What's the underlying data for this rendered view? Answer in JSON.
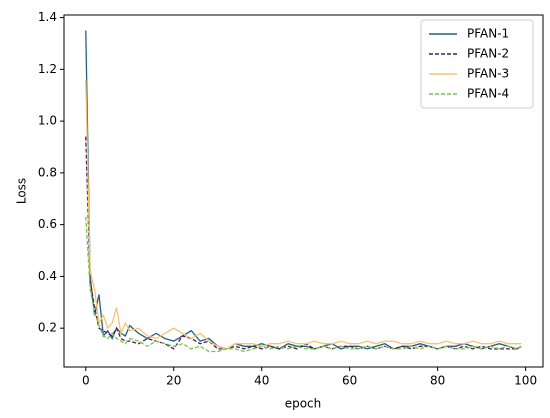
{
  "chart_data": {
    "type": "line",
    "xlabel": "epoch",
    "ylabel": "Loss",
    "x": [
      0,
      1,
      2,
      3,
      4,
      5,
      6,
      7,
      8,
      9,
      10,
      12,
      14,
      16,
      18,
      20,
      22,
      24,
      26,
      28,
      30,
      32,
      34,
      36,
      38,
      40,
      42,
      44,
      46,
      48,
      50,
      52,
      54,
      56,
      58,
      60,
      62,
      64,
      66,
      68,
      70,
      72,
      74,
      76,
      78,
      80,
      82,
      84,
      86,
      88,
      90,
      92,
      94,
      96,
      98,
      99
    ],
    "series": [
      {
        "name": "PFAN-1",
        "color": "#21617f",
        "linestyle": "solid",
        "values": [
          1.35,
          0.4,
          0.25,
          0.33,
          0.17,
          0.19,
          0.16,
          0.2,
          0.18,
          0.17,
          0.21,
          0.18,
          0.16,
          0.18,
          0.16,
          0.15,
          0.17,
          0.19,
          0.15,
          0.16,
          0.13,
          0.12,
          0.14,
          0.13,
          0.13,
          0.14,
          0.13,
          0.12,
          0.14,
          0.13,
          0.13,
          0.12,
          0.13,
          0.14,
          0.12,
          0.13,
          0.13,
          0.12,
          0.13,
          0.14,
          0.12,
          0.13,
          0.13,
          0.14,
          0.13,
          0.12,
          0.13,
          0.13,
          0.14,
          0.13,
          0.12,
          0.13,
          0.14,
          0.13,
          0.12,
          0.13
        ]
      },
      {
        "name": "PFAN-2",
        "color": "#4b1c57",
        "linestyle": "dashed",
        "values": [
          0.94,
          0.38,
          0.28,
          0.2,
          0.19,
          0.18,
          0.17,
          0.2,
          0.16,
          0.15,
          0.15,
          0.14,
          0.16,
          0.15,
          0.14,
          0.12,
          0.17,
          0.16,
          0.14,
          0.15,
          0.12,
          0.12,
          0.13,
          0.12,
          0.13,
          0.12,
          0.13,
          0.12,
          0.13,
          0.12,
          0.14,
          0.12,
          0.13,
          0.12,
          0.13,
          0.13,
          0.12,
          0.13,
          0.12,
          0.13,
          0.12,
          0.13,
          0.12,
          0.13,
          0.13,
          0.12,
          0.13,
          0.12,
          0.13,
          0.12,
          0.13,
          0.12,
          0.12,
          0.12,
          0.12,
          0.13
        ]
      },
      {
        "name": "PFAN-3",
        "color": "#f7c46c",
        "linestyle": "solid",
        "values": [
          1.16,
          0.42,
          0.35,
          0.22,
          0.25,
          0.2,
          0.22,
          0.28,
          0.18,
          0.22,
          0.19,
          0.2,
          0.17,
          0.16,
          0.18,
          0.2,
          0.18,
          0.16,
          0.18,
          0.15,
          0.13,
          0.12,
          0.14,
          0.14,
          0.14,
          0.13,
          0.14,
          0.14,
          0.15,
          0.14,
          0.14,
          0.15,
          0.14,
          0.14,
          0.15,
          0.14,
          0.14,
          0.15,
          0.14,
          0.15,
          0.15,
          0.14,
          0.14,
          0.15,
          0.14,
          0.14,
          0.15,
          0.14,
          0.14,
          0.15,
          0.14,
          0.14,
          0.15,
          0.14,
          0.14,
          0.14
        ]
      },
      {
        "name": "PFAN-4",
        "color": "#7cc24a",
        "linestyle": "dashed",
        "values": [
          0.63,
          0.35,
          0.26,
          0.21,
          0.17,
          0.16,
          0.18,
          0.16,
          0.15,
          0.14,
          0.16,
          0.15,
          0.13,
          0.15,
          0.14,
          0.13,
          0.14,
          0.12,
          0.13,
          0.11,
          0.11,
          0.12,
          0.12,
          0.11,
          0.12,
          0.13,
          0.12,
          0.13,
          0.12,
          0.13,
          0.12,
          0.12,
          0.13,
          0.12,
          0.13,
          0.12,
          0.12,
          0.13,
          0.12,
          0.13,
          0.12,
          0.12,
          0.13,
          0.12,
          0.13,
          0.12,
          0.13,
          0.12,
          0.12,
          0.13,
          0.12,
          0.13,
          0.12,
          0.13,
          0.12,
          0.13
        ]
      }
    ],
    "xlim": [
      -4.95,
      103.95
    ],
    "xticks": [
      0,
      20,
      40,
      60,
      80,
      100
    ],
    "ylim": [
      0.05,
      1.41
    ],
    "yticks": [
      0.2,
      0.4,
      0.6,
      0.8,
      {
        "value": 1.0,
        "label": "1.0"
      },
      1.2,
      1.4
    ],
    "grid": false,
    "legend": "upper right"
  }
}
